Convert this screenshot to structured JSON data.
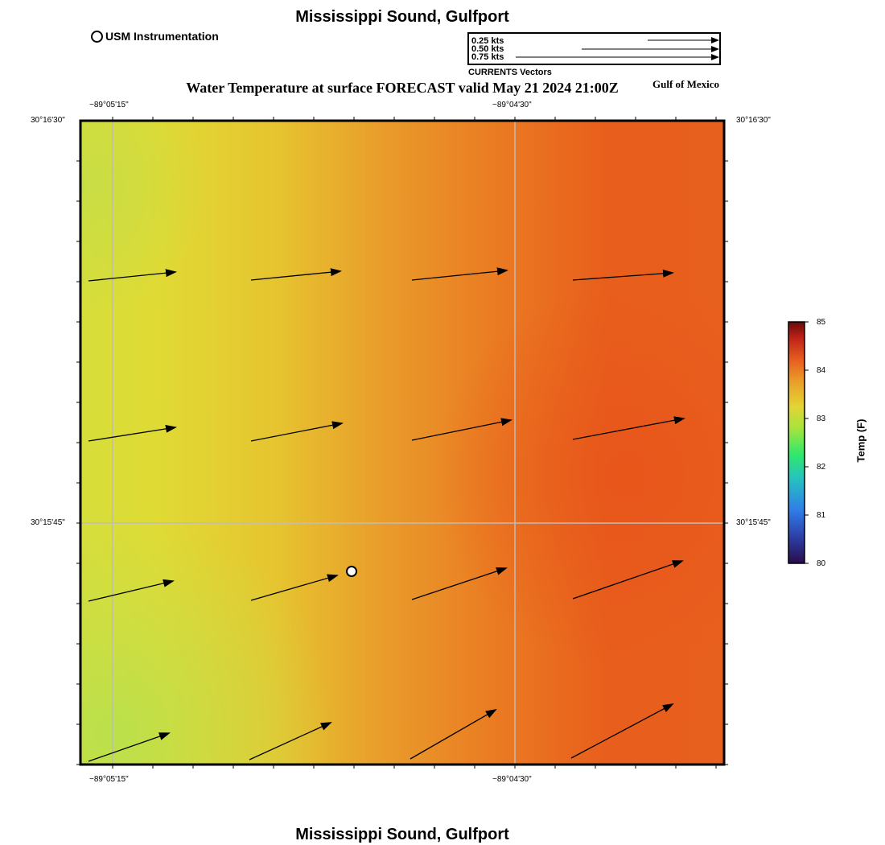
{
  "header": {
    "title": "Mississippi Sound, Gulfport",
    "map_title": "Water Temperature at surface FORECAST valid May 21 2024 21:00Z",
    "region_label": "Gulf of Mexico"
  },
  "footer": {
    "title": "Mississippi Sound, Gulfport"
  },
  "legend": {
    "instrument_label": "USM Instrumentation",
    "vector_rows": [
      "0.25 kts",
      "0.50 kts",
      "0.75 kts"
    ],
    "vector_caption": "CURRENTS Vectors"
  },
  "axes": {
    "top_left_lon": "−89°05'15\"",
    "top_mid_lon": "−89°04'30\"",
    "bottom_left_lon": "−89°05'15\"",
    "bottom_mid_lon": "−89°04'30\"",
    "left_top_lat": "30°16'30\"",
    "left_mid_lat": "30°15'45\"",
    "right_top_lat": "30°16'30\"",
    "right_mid_lat": "30°15'45\""
  },
  "colorbar": {
    "title": "Temp (F)",
    "ticks": [
      "85",
      "84",
      "83",
      "82",
      "81",
      "80"
    ]
  },
  "colors": {
    "warm": "#e8541c",
    "mid": "#e89a2c",
    "cool": "#e2d934",
    "cooler": "#c4e04a"
  }
}
